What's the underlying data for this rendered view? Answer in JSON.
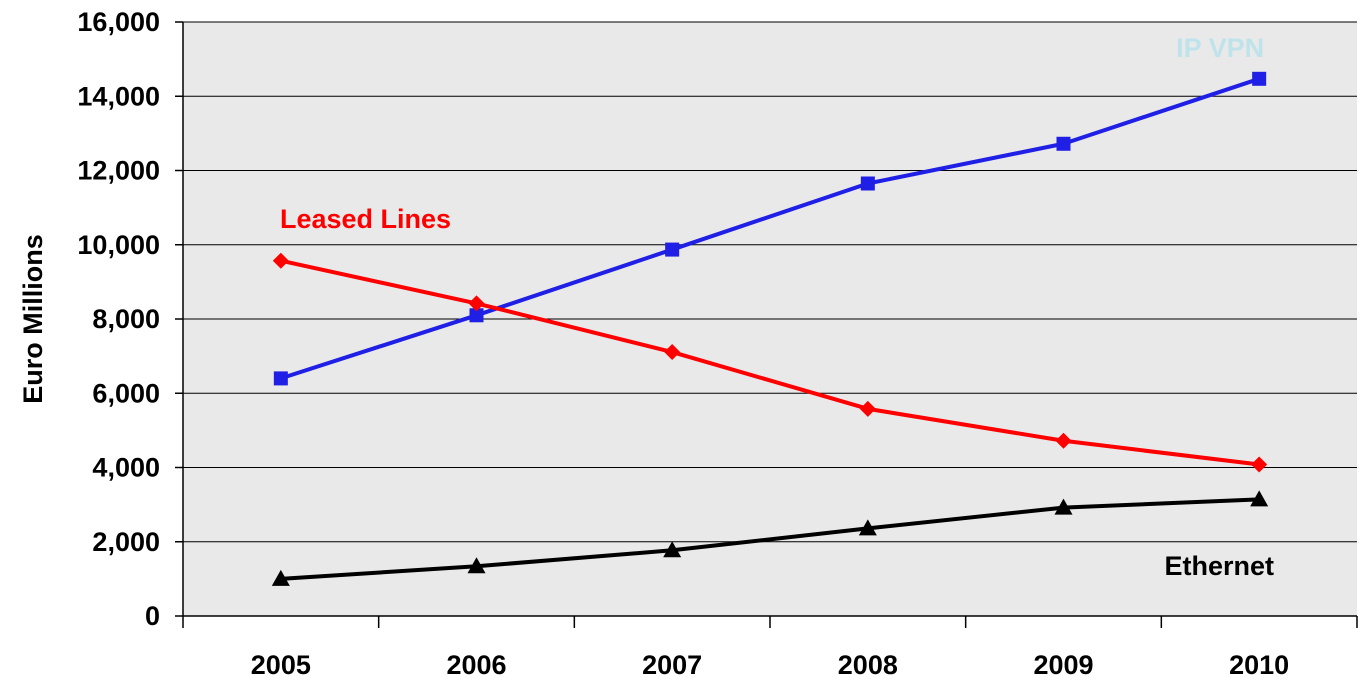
{
  "chart_data": {
    "type": "line",
    "title": "",
    "xlabel": "",
    "ylabel": "Euro Millions",
    "categories": [
      "2005",
      "2006",
      "2007",
      "2008",
      "2009",
      "2010"
    ],
    "ylim": [
      0,
      16000
    ],
    "yticks": [
      0,
      2000,
      4000,
      6000,
      8000,
      10000,
      12000,
      14000,
      16000
    ],
    "ytick_labels": [
      "0",
      "2,000",
      "4,000",
      "6,000",
      "8,000",
      "10,000",
      "12,000",
      "14,000",
      "16,000"
    ],
    "grid": true,
    "legend": "none",
    "plot_background": "#e9e9e9",
    "series": [
      {
        "name": "IP VPN",
        "marker": "square",
        "color": "#1f1fe6",
        "label_color": "#bfe3ea",
        "values": [
          6400,
          8100,
          9870,
          11650,
          12720,
          14470
        ]
      },
      {
        "name": "Leased Lines",
        "marker": "diamond",
        "color": "#ff0000",
        "label_color": "#ff0000",
        "values": [
          9570,
          8420,
          7110,
          5580,
          4720,
          4080
        ]
      },
      {
        "name": "Ethernet",
        "marker": "triangle",
        "color": "#000000",
        "label_color": "#000000",
        "values": [
          1000,
          1340,
          1770,
          2360,
          2920,
          3140
        ]
      }
    ]
  }
}
